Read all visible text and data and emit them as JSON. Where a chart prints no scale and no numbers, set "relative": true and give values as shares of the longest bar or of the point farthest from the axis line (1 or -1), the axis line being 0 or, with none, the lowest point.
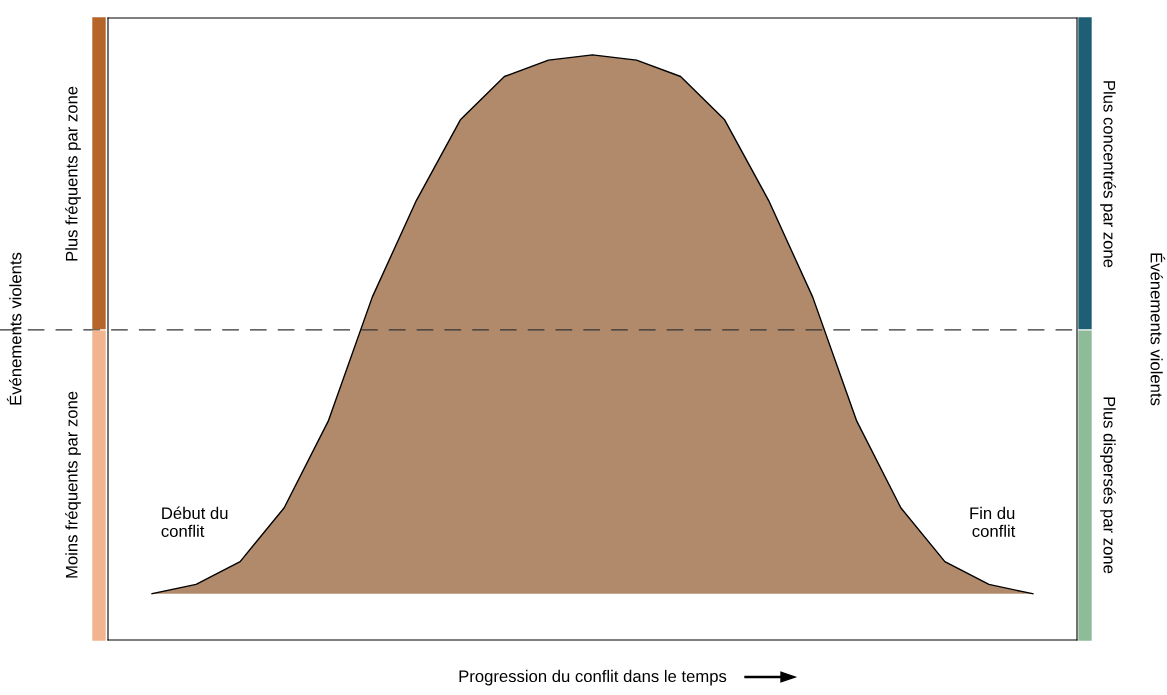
{
  "chart_data": {
    "type": "area",
    "relative": true,
    "xlabel": "Progression du conflit dans le temps",
    "categories": [
      null,
      null,
      null,
      null,
      null,
      null,
      null,
      null,
      null,
      null,
      null,
      null,
      null,
      null,
      null,
      null,
      null,
      null,
      null,
      null,
      null
    ],
    "series": [
      {
        "color": "#b08a6a",
        "values": [
          0.079,
          0.095,
          0.134,
          0.226,
          0.374,
          0.586,
          0.751,
          0.889,
          0.963,
          0.991,
          1,
          0.991,
          0.963,
          0.889,
          0.751,
          0.586,
          0.374,
          0.226,
          0.134,
          0.095,
          0.079
        ]
      }
    ],
    "ref_lines": [
      {
        "axis": "y",
        "value": 0.53,
        "line_style": "dashed",
        "color": "#333333"
      }
    ],
    "annotations": [
      "Plus fréquents par zone",
      "Moins fréquents par zone",
      "Plus concentrés par zone",
      "Plus dispersés par zone",
      "Début du\nconflit",
      "Fin du\nconflit",
      "Événements violents",
      "Événements violents"
    ],
    "grid": false,
    "legend": false
  }
}
